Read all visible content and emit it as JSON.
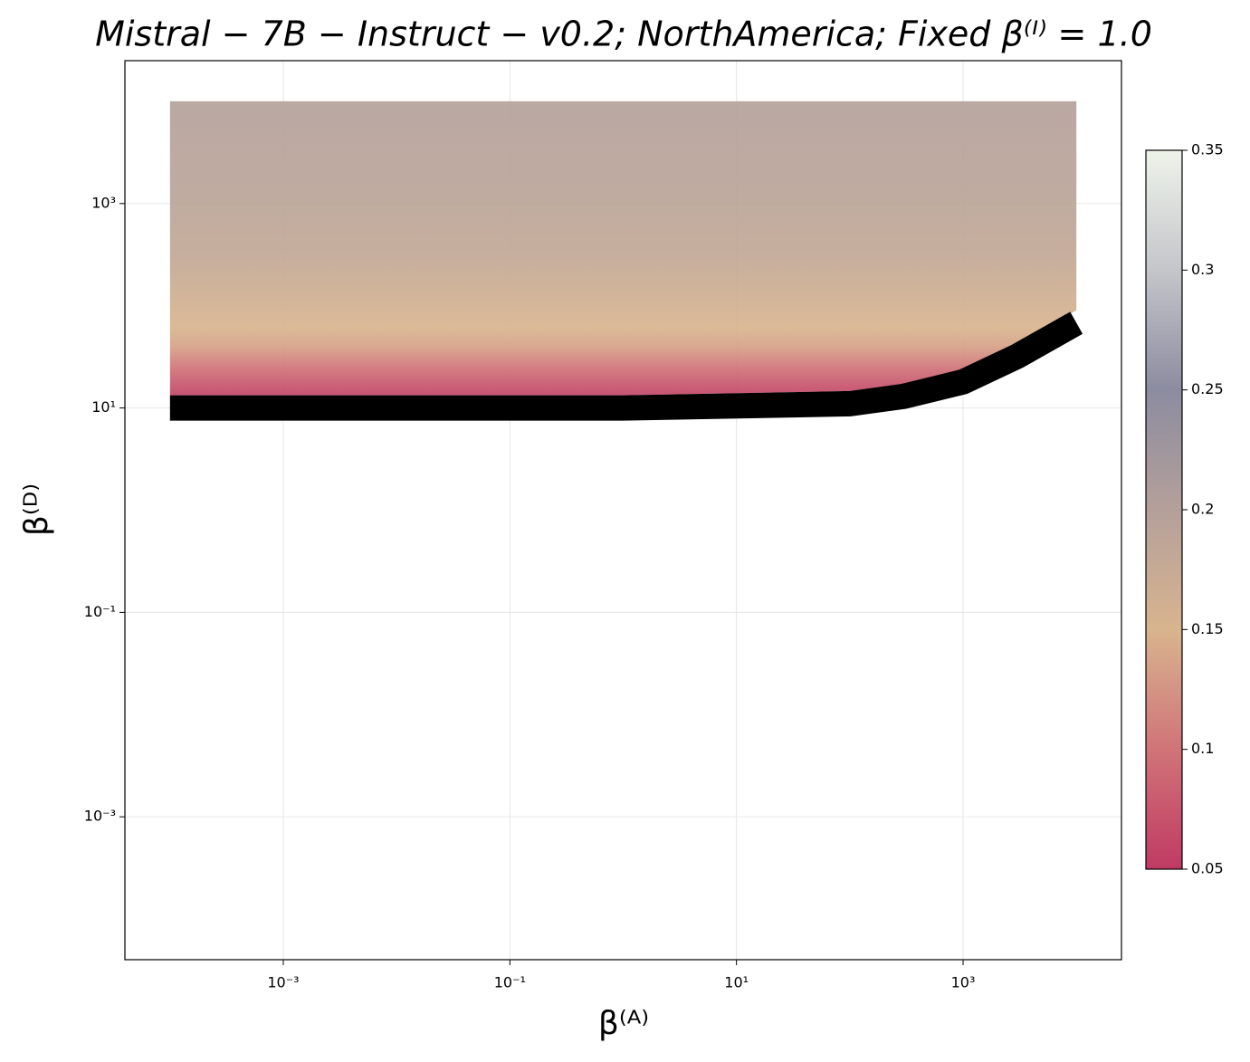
{
  "chart_data": {
    "type": "heatmap",
    "title": "Mistral − 7B − Instruct − v0.2;  NorthAmerica;  Fixed β⁽ᴵ⁾ = 1.0",
    "xlabel": "β⁽ᴬ⁾",
    "ylabel": "β⁽ᴰ⁾",
    "log_x": true,
    "log_y": true,
    "grid": true,
    "xlim": [
      4e-05,
      25000
    ],
    "ylim": [
      4e-05,
      25000
    ],
    "xticks": [
      {
        "value": 0.001,
        "label": "10⁻³"
      },
      {
        "value": 0.1,
        "label": "10⁻¹"
      },
      {
        "value": 10,
        "label": "10¹"
      },
      {
        "value": 1000,
        "label": "10³"
      }
    ],
    "yticks": [
      {
        "value": 0.001,
        "label": "10⁻³"
      },
      {
        "value": 0.1,
        "label": "10⁻¹"
      },
      {
        "value": 10,
        "label": "10¹"
      },
      {
        "value": 1000,
        "label": "10³"
      }
    ],
    "boundary": {
      "x": [
        0.0001,
        0.01,
        1,
        100,
        300,
        1000,
        3000,
        10000
      ],
      "values": [
        10,
        10,
        10,
        11,
        13,
        18,
        32,
        68
      ],
      "color": "#000000"
    },
    "profile": {
      "y": [
        11,
        16,
        25,
        40,
        60,
        100,
        300,
        1000,
        10000
      ],
      "values": [
        0.05,
        0.07,
        0.1,
        0.135,
        0.15,
        0.16,
        0.18,
        0.19,
        0.2
      ]
    },
    "colorbar": {
      "lim": [
        0.05,
        0.35
      ],
      "ticks": [
        0.05,
        0.1,
        0.15,
        0.2,
        0.25,
        0.3,
        0.35
      ],
      "colors": [
        "#c03a63",
        "#d07478",
        "#d8b48e",
        "#b4a09a",
        "#8c8ca0",
        "#c4c6ca",
        "#eef3ea"
      ]
    }
  }
}
